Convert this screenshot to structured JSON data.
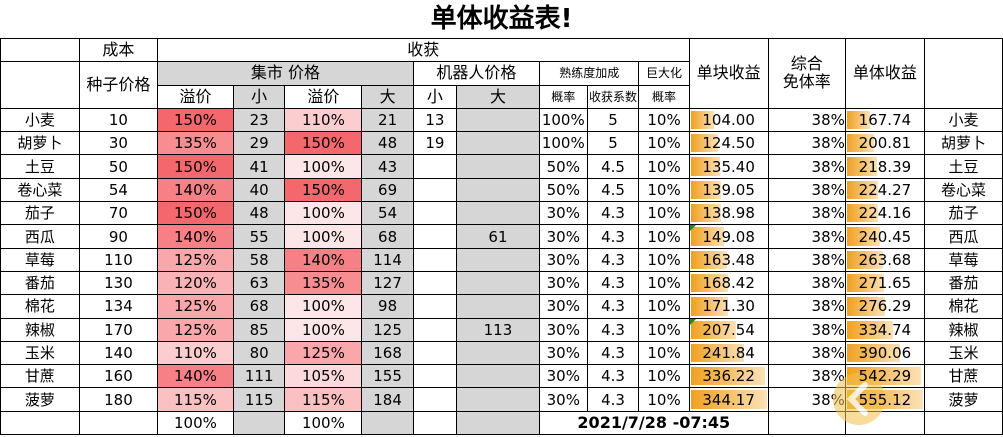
{
  "title": "单体收益表!",
  "header": {
    "cost": "成本",
    "harvest": "收获",
    "seed_price": "种子价格",
    "market_price": "集市 价格",
    "robot_price": "机器人价格",
    "skill_bonus": "熟练度加成",
    "giant": "巨大化",
    "unit_profit": "单块收益",
    "avoid_rate": "综合\n免体率",
    "single_profit": "单体收益",
    "premium": "溢价",
    "small": "小",
    "large": "大",
    "prob": "概率",
    "harvest_coef": "收获系数",
    "giant_prob": "概率"
  },
  "rows": [
    {
      "name": "小麦",
      "seed": "10",
      "p_small": "150%",
      "small": "23",
      "p_large": "110%",
      "large": "21",
      "r_small": "13",
      "r_large": "",
      "prob": "100%",
      "coef": "5",
      "giant": "10%",
      "unit": "104.00",
      "avoid": "38%",
      "single": "167.74",
      "name2": "小麦",
      "unit_frac": 0.302,
      "single_frac": 0.302
    },
    {
      "name": "胡萝卜",
      "seed": "30",
      "p_small": "135%",
      "small": "29",
      "p_large": "150%",
      "large": "48",
      "r_small": "19",
      "r_large": "",
      "prob": "100%",
      "coef": "5",
      "giant": "10%",
      "unit": "124.50",
      "avoid": "38%",
      "single": "200.81",
      "name2": "胡萝卜",
      "unit_frac": 0.362,
      "single_frac": 0.362
    },
    {
      "name": "土豆",
      "seed": "50",
      "p_small": "150%",
      "small": "41",
      "p_large": "100%",
      "large": "43",
      "r_small": "",
      "r_large": "",
      "prob": "50%",
      "coef": "4.5",
      "giant": "10%",
      "unit": "135.40",
      "avoid": "38%",
      "single": "218.39",
      "name2": "土豆",
      "unit_frac": 0.393,
      "single_frac": 0.393
    },
    {
      "name": "卷心菜",
      "seed": "54",
      "p_small": "140%",
      "small": "40",
      "p_large": "150%",
      "large": "69",
      "r_small": "",
      "r_large": "",
      "prob": "50%",
      "coef": "4.5",
      "giant": "10%",
      "unit": "139.05",
      "avoid": "38%",
      "single": "224.27",
      "name2": "卷心菜",
      "unit_frac": 0.404,
      "single_frac": 0.404
    },
    {
      "name": "茄子",
      "seed": "70",
      "p_small": "150%",
      "small": "48",
      "p_large": "100%",
      "large": "54",
      "r_small": "",
      "r_large": "",
      "prob": "30%",
      "coef": "4.3",
      "giant": "10%",
      "unit": "138.98",
      "avoid": "38%",
      "single": "224.16",
      "name2": "茄子",
      "unit_frac": 0.404,
      "single_frac": 0.404
    },
    {
      "name": "西瓜",
      "seed": "90",
      "p_small": "140%",
      "small": "55",
      "p_large": "100%",
      "large": "68",
      "r_small": "",
      "r_large": "61",
      "prob": "30%",
      "coef": "4.3",
      "giant": "10%",
      "unit": "149.08",
      "avoid": "38%",
      "single": "240.45",
      "name2": "西瓜",
      "unit_frac": 0.433,
      "single_frac": 0.433
    },
    {
      "name": "草莓",
      "seed": "110",
      "p_small": "125%",
      "small": "58",
      "p_large": "140%",
      "large": "114",
      "r_small": "",
      "r_large": "",
      "prob": "30%",
      "coef": "4.3",
      "giant": "10%",
      "unit": "163.48",
      "avoid": "38%",
      "single": "263.68",
      "name2": "草莓",
      "unit_frac": 0.475,
      "single_frac": 0.475
    },
    {
      "name": "番茄",
      "seed": "130",
      "p_small": "120%",
      "small": "63",
      "p_large": "135%",
      "large": "127",
      "r_small": "",
      "r_large": "",
      "prob": "30%",
      "coef": "4.3",
      "giant": "10%",
      "unit": "168.42",
      "avoid": "38%",
      "single": "271.65",
      "name2": "番茄",
      "unit_frac": 0.489,
      "single_frac": 0.489
    },
    {
      "name": "棉花",
      "seed": "134",
      "p_small": "125%",
      "small": "68",
      "p_large": "100%",
      "large": "98",
      "r_small": "",
      "r_large": "",
      "prob": "30%",
      "coef": "4.3",
      "giant": "10%",
      "unit": "171.30",
      "avoid": "38%",
      "single": "276.29",
      "name2": "棉花",
      "unit_frac": 0.498,
      "single_frac": 0.498
    },
    {
      "name": "辣椒",
      "seed": "170",
      "p_small": "125%",
      "small": "85",
      "p_large": "100%",
      "large": "125",
      "r_small": "",
      "r_large": "113",
      "prob": "30%",
      "coef": "4.3",
      "giant": "10%",
      "unit": "207.54",
      "avoid": "38%",
      "single": "334.74",
      "name2": "辣椒",
      "unit_frac": 0.603,
      "single_frac": 0.603
    },
    {
      "name": "玉米",
      "seed": "140",
      "p_small": "110%",
      "small": "80",
      "p_large": "125%",
      "large": "168",
      "r_small": "",
      "r_large": "",
      "prob": "30%",
      "coef": "4.3",
      "giant": "10%",
      "unit": "241.84",
      "avoid": "38%",
      "single": "390.06",
      "name2": "玉米",
      "unit_frac": 0.703,
      "single_frac": 0.703
    },
    {
      "name": "甘蔗",
      "seed": "160",
      "p_small": "140%",
      "small": "111",
      "p_large": "105%",
      "large": "155",
      "r_small": "",
      "r_large": "",
      "prob": "30%",
      "coef": "4.3",
      "giant": "10%",
      "unit": "336.22",
      "avoid": "38%",
      "single": "542.29",
      "name2": "甘蔗",
      "unit_frac": 0.977,
      "single_frac": 0.977
    },
    {
      "name": "菠萝",
      "seed": "180",
      "p_small": "115%",
      "small": "115",
      "p_large": "115%",
      "large": "184",
      "r_small": "",
      "r_large": "",
      "prob": "30%",
      "coef": "4.3",
      "giant": "10%",
      "unit": "344.17",
      "avoid": "38%",
      "single": "555.12",
      "name2": "菠萝",
      "unit_frac": 1.0,
      "single_frac": 1.0
    }
  ],
  "footer": {
    "p_small": "100%",
    "p_large": "100%",
    "timestamp": "2021/7/28 -07:45"
  },
  "watermark": {
    "logo": "逗游",
    "site": "doyo.cn"
  },
  "colors": {
    "premium_max": "#f4676c",
    "premium_min": "#fde6e7",
    "bar_start": "#f0a020",
    "grid": "#000000",
    "gray": "#d6d6d6"
  }
}
